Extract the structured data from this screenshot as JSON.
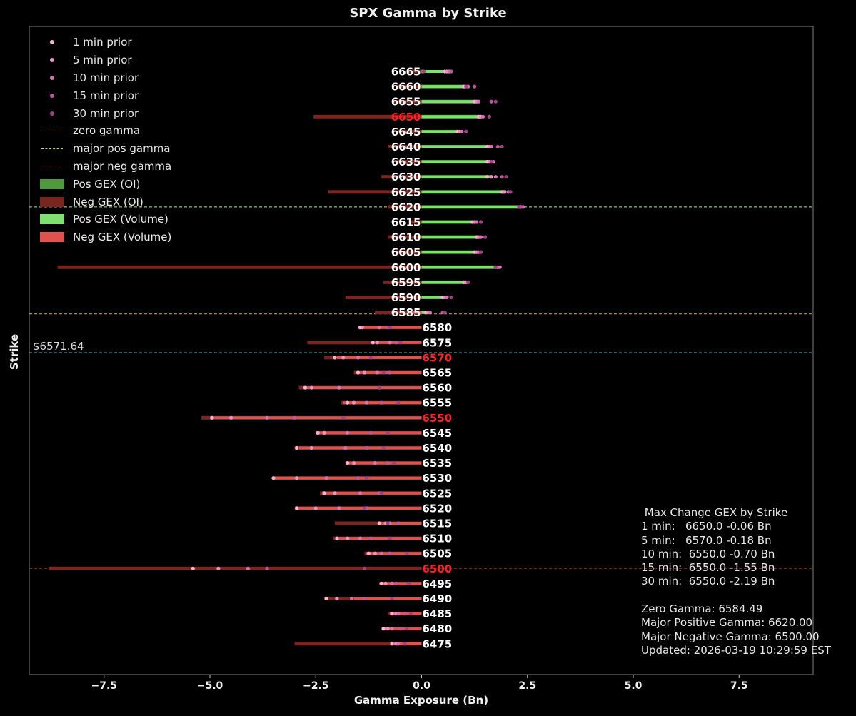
{
  "title": "SPX Gamma by Strike",
  "xlabel": "Gamma Exposure (Bn)",
  "ylabel": "Strike",
  "spot_label": "$6571.64",
  "legend": [
    {
      "label": "1 min prior",
      "kind": "dot",
      "color": "#f4b6d2"
    },
    {
      "label": "5 min prior",
      "kind": "dot",
      "color": "#e994c0"
    },
    {
      "label": "10 min prior",
      "kind": "dot",
      "color": "#d674b0"
    },
    {
      "label": "15 min prior",
      "kind": "dot",
      "color": "#c0569e"
    },
    {
      "label": "30 min prior",
      "kind": "dot",
      "color": "#9c4386"
    },
    {
      "label": "zero gamma",
      "kind": "dash",
      "color": "#e0a85a"
    },
    {
      "label": "major pos gamma",
      "kind": "dash",
      "color": "#a8e28a"
    },
    {
      "label": "major neg gamma",
      "kind": "dash",
      "color": "#9a3030"
    },
    {
      "label": "Pos GEX (OI)",
      "kind": "box",
      "color": "#4e9a3c"
    },
    {
      "label": "Neg GEX (OI)",
      "kind": "box",
      "color": "#7a2620"
    },
    {
      "label": "Pos GEX (Volume)",
      "kind": "box",
      "color": "#7ee06e"
    },
    {
      "label": "Neg GEX (Volume)",
      "kind": "box",
      "color": "#e0524c"
    }
  ],
  "stats": {
    "heading": " Max Change GEX by Strike",
    "lines": [
      "1 min:   6650.0 -0.06 Bn",
      "5 min:   6570.0 -0.18 Bn",
      "10 min:  6550.0 -0.70 Bn",
      "15 min:  6550.0 -1.55 Bn",
      "30 min:  6550.0 -2.19 Bn",
      "",
      "Zero Gamma: 6584.49",
      "Major Positive Gamma: 6620.00",
      "Major Negative Gamma: 6500.00",
      "Updated: 2026-03-19 10:29:59 EST"
    ]
  },
  "colors": {
    "pos_oi": "#4e9a3c",
    "neg_oi": "#7a2620",
    "pos_vol": "#7ee06e",
    "neg_vol": "#e0524c",
    "zero_line": "#e0a85a",
    "pos_line": "#a8e28a",
    "neg_line": "#9a3030",
    "spot_line": "#40b8c8",
    "highlight_label": "#ff2020",
    "label": "#ffffff",
    "axis": "#555555"
  },
  "chart_data": {
    "type": "bar",
    "orientation": "horizontal",
    "title": "SPX Gamma by Strike",
    "xlabel": "Gamma Exposure (Bn)",
    "ylabel": "Strike",
    "xlim": [
      -9.35,
      9.25
    ],
    "xticks": [
      -7.5,
      -5.0,
      -2.5,
      0.0,
      2.5,
      5.0,
      7.5
    ],
    "zero_gamma": 6584.49,
    "major_pos_gamma": 6620.0,
    "major_neg_gamma": 6500.0,
    "spot": 6571.64,
    "highlighted_strikes": [
      6650,
      6570,
      6550,
      6500
    ],
    "strikes": [
      6665,
      6660,
      6655,
      6650,
      6645,
      6640,
      6635,
      6630,
      6625,
      6620,
      6615,
      6610,
      6605,
      6600,
      6595,
      6590,
      6585,
      6580,
      6575,
      6570,
      6565,
      6560,
      6555,
      6550,
      6545,
      6540,
      6535,
      6530,
      6525,
      6520,
      6515,
      6510,
      6505,
      6500,
      6495,
      6490,
      6485,
      6480,
      6475
    ],
    "series": [
      {
        "name": "Pos GEX (OI)",
        "values": [
          0.05,
          1.0,
          1.35,
          1.4,
          0.85,
          1.6,
          1.6,
          1.65,
          2.0,
          2.35,
          1.2,
          1.35,
          1.3,
          1.75,
          1.0,
          0.5,
          0.2,
          0,
          0,
          0,
          0,
          0,
          0,
          0,
          0,
          0,
          0,
          0,
          0,
          0,
          0,
          0,
          0,
          0,
          0,
          0,
          0,
          0,
          0
        ]
      },
      {
        "name": "Neg GEX (OI)",
        "values": [
          -0.35,
          -0.6,
          -0.65,
          -2.55,
          -0.55,
          -0.8,
          -0.6,
          -0.95,
          -2.2,
          -0.8,
          -0.3,
          -0.8,
          -0.6,
          -8.6,
          -0.9,
          -1.8,
          -1.1,
          -1.5,
          -2.7,
          -2.3,
          -1.6,
          -2.9,
          -1.9,
          -5.2,
          -2.5,
          -3.0,
          -1.8,
          -3.5,
          -2.4,
          -3.0,
          -2.05,
          -2.1,
          -1.35,
          -8.8,
          -1.0,
          -2.3,
          -0.8,
          -0.95,
          -3.0
        ]
      },
      {
        "name": "Pos GEX (Volume)",
        "values": [
          0.5,
          1.05,
          1.3,
          1.35,
          0.85,
          1.5,
          1.55,
          1.6,
          2.0,
          2.4,
          1.25,
          1.3,
          1.3,
          1.7,
          1.05,
          0.5,
          0.2,
          0,
          0,
          0,
          0,
          0,
          0,
          0,
          0,
          0,
          0,
          0,
          0,
          0,
          0,
          0,
          0,
          0,
          0,
          0,
          0,
          0,
          0
        ]
      },
      {
        "name": "Neg GEX (Volume)",
        "values": [
          0,
          0,
          0,
          0,
          0,
          0,
          0,
          0,
          0,
          0,
          0,
          0,
          0,
          0,
          0,
          0,
          -0.3,
          -1.4,
          -1.1,
          -2.0,
          -1.55,
          -2.8,
          -1.85,
          -5.0,
          -2.5,
          -2.9,
          -1.75,
          -3.5,
          -2.35,
          -2.95,
          -1.0,
          -2.0,
          -1.3,
          0,
          -0.95,
          -1.6,
          -0.75,
          -0.9,
          -0.7
        ]
      }
    ],
    "prior_points": [
      {
        "name": "1 min prior",
        "values": [
          0.55,
          1.0,
          1.25,
          1.35,
          0.85,
          1.55,
          1.55,
          1.55,
          1.9,
          2.3,
          1.2,
          1.3,
          1.25,
          1.75,
          1.0,
          0.5,
          0.1,
          -1.45,
          -1.15,
          -2.05,
          -1.5,
          -2.75,
          -1.75,
          -4.95,
          -2.45,
          -2.95,
          -1.75,
          -3.5,
          -2.3,
          -2.95,
          -1.0,
          -2.0,
          -1.25,
          -5.4,
          -0.95,
          -2.25,
          -0.7,
          -0.9,
          -0.7
        ]
      },
      {
        "name": "5 min prior",
        "values": [
          0.6,
          1.05,
          1.3,
          1.4,
          0.9,
          1.6,
          1.6,
          1.65,
          1.95,
          2.35,
          1.25,
          1.35,
          1.3,
          1.8,
          1.05,
          0.55,
          0.15,
          -1.4,
          -1.05,
          -1.85,
          -1.35,
          -2.6,
          -1.6,
          -4.5,
          -2.3,
          -2.6,
          -1.6,
          -2.95,
          -2.05,
          -2.5,
          -0.85,
          -1.75,
          -1.1,
          -4.8,
          -0.85,
          -2.0,
          -0.6,
          -0.8,
          -0.6
        ]
      },
      {
        "name": "10 min prior",
        "values": [
          0.65,
          1.1,
          1.35,
          1.45,
          0.95,
          1.65,
          1.7,
          1.75,
          2.05,
          2.4,
          1.3,
          1.4,
          1.35,
          1.85,
          1.1,
          0.6,
          0.2,
          -1.0,
          -0.75,
          -1.5,
          -1.05,
          -1.95,
          -1.3,
          -3.65,
          -1.75,
          -1.8,
          -1.1,
          -2.25,
          -1.45,
          -1.95,
          -0.75,
          -1.45,
          -0.95,
          -4.1,
          -0.7,
          -1.65,
          -0.55,
          -0.7,
          -0.55
        ]
      },
      {
        "name": "15 min prior",
        "values": [
          0.7,
          1.25,
          1.65,
          1.6,
          1.05,
          1.8,
          1.65,
          1.9,
          2.1,
          2.35,
          1.4,
          1.5,
          1.4,
          1.75,
          1.1,
          0.7,
          0.5,
          -0.8,
          -0.6,
          -1.2,
          -0.75,
          -1.0,
          -0.95,
          -3.0,
          -1.2,
          -1.3,
          -0.8,
          -1.5,
          -1.0,
          -1.3,
          -0.55,
          -1.2,
          -0.75,
          -3.65,
          -0.6,
          -1.35,
          -0.4,
          -0.5,
          -0.4
        ]
      },
      {
        "name": "30 min prior",
        "values": [
          0.05,
          1.05,
          1.75,
          1.6,
          1.05,
          1.9,
          1.65,
          2.0,
          2.1,
          2.3,
          1.4,
          1.5,
          1.4,
          1.75,
          1.1,
          0.7,
          0.55,
          -0.75,
          -0.5,
          -1.2,
          -0.9,
          -1.0,
          -0.55,
          -1.85,
          -0.8,
          -0.9,
          -0.65,
          -1.3,
          -0.95,
          -1.35,
          -0.8,
          -0.75,
          -0.35,
          -1.35,
          -0.3,
          -0.7,
          -0.25,
          -0.35,
          -0.4
        ]
      }
    ]
  }
}
